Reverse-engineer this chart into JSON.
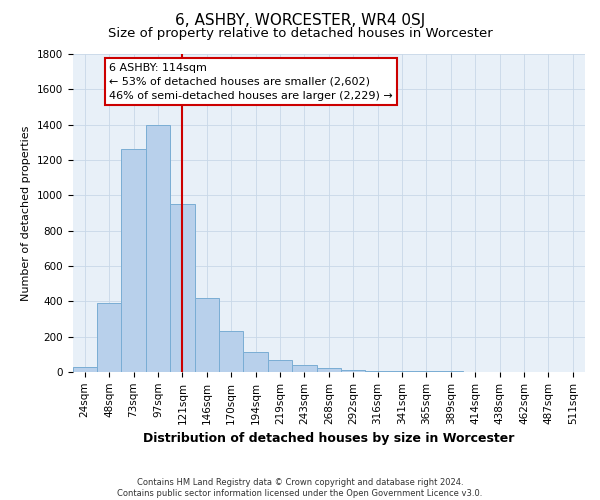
{
  "title": "6, ASHBY, WORCESTER, WR4 0SJ",
  "subtitle": "Size of property relative to detached houses in Worcester",
  "xlabel": "Distribution of detached houses by size in Worcester",
  "ylabel": "Number of detached properties",
  "footnote": "Contains HM Land Registry data © Crown copyright and database right 2024.\nContains public sector information licensed under the Open Government Licence v3.0.",
  "categories": [
    "24sqm",
    "48sqm",
    "73sqm",
    "97sqm",
    "121sqm",
    "146sqm",
    "170sqm",
    "194sqm",
    "219sqm",
    "243sqm",
    "268sqm",
    "292sqm",
    "316sqm",
    "341sqm",
    "365sqm",
    "389sqm",
    "414sqm",
    "438sqm",
    "462sqm",
    "487sqm",
    "511sqm"
  ],
  "values": [
    25,
    390,
    1260,
    1400,
    950,
    420,
    230,
    110,
    65,
    40,
    20,
    10,
    5,
    5,
    3,
    2,
    1,
    1,
    1,
    1,
    1
  ],
  "bar_color": "#b8d0eb",
  "bar_edge_color": "#7aadd4",
  "vline_x_index": 4,
  "vline_color": "#cc0000",
  "annotation_text": "6 ASHBY: 114sqm\n← 53% of detached houses are smaller (2,602)\n46% of semi-detached houses are larger (2,229) →",
  "annotation_box_color": "#ffffff",
  "annotation_box_edge": "#cc0000",
  "ylim": [
    0,
    1800
  ],
  "yticks": [
    0,
    200,
    400,
    600,
    800,
    1000,
    1200,
    1400,
    1600,
    1800
  ],
  "grid_color": "#c8d8e8",
  "background_color": "#e8f0f8",
  "title_fontsize": 11,
  "subtitle_fontsize": 9.5,
  "xlabel_fontsize": 9,
  "ylabel_fontsize": 8,
  "tick_fontsize": 7.5,
  "annot_fontsize": 8
}
